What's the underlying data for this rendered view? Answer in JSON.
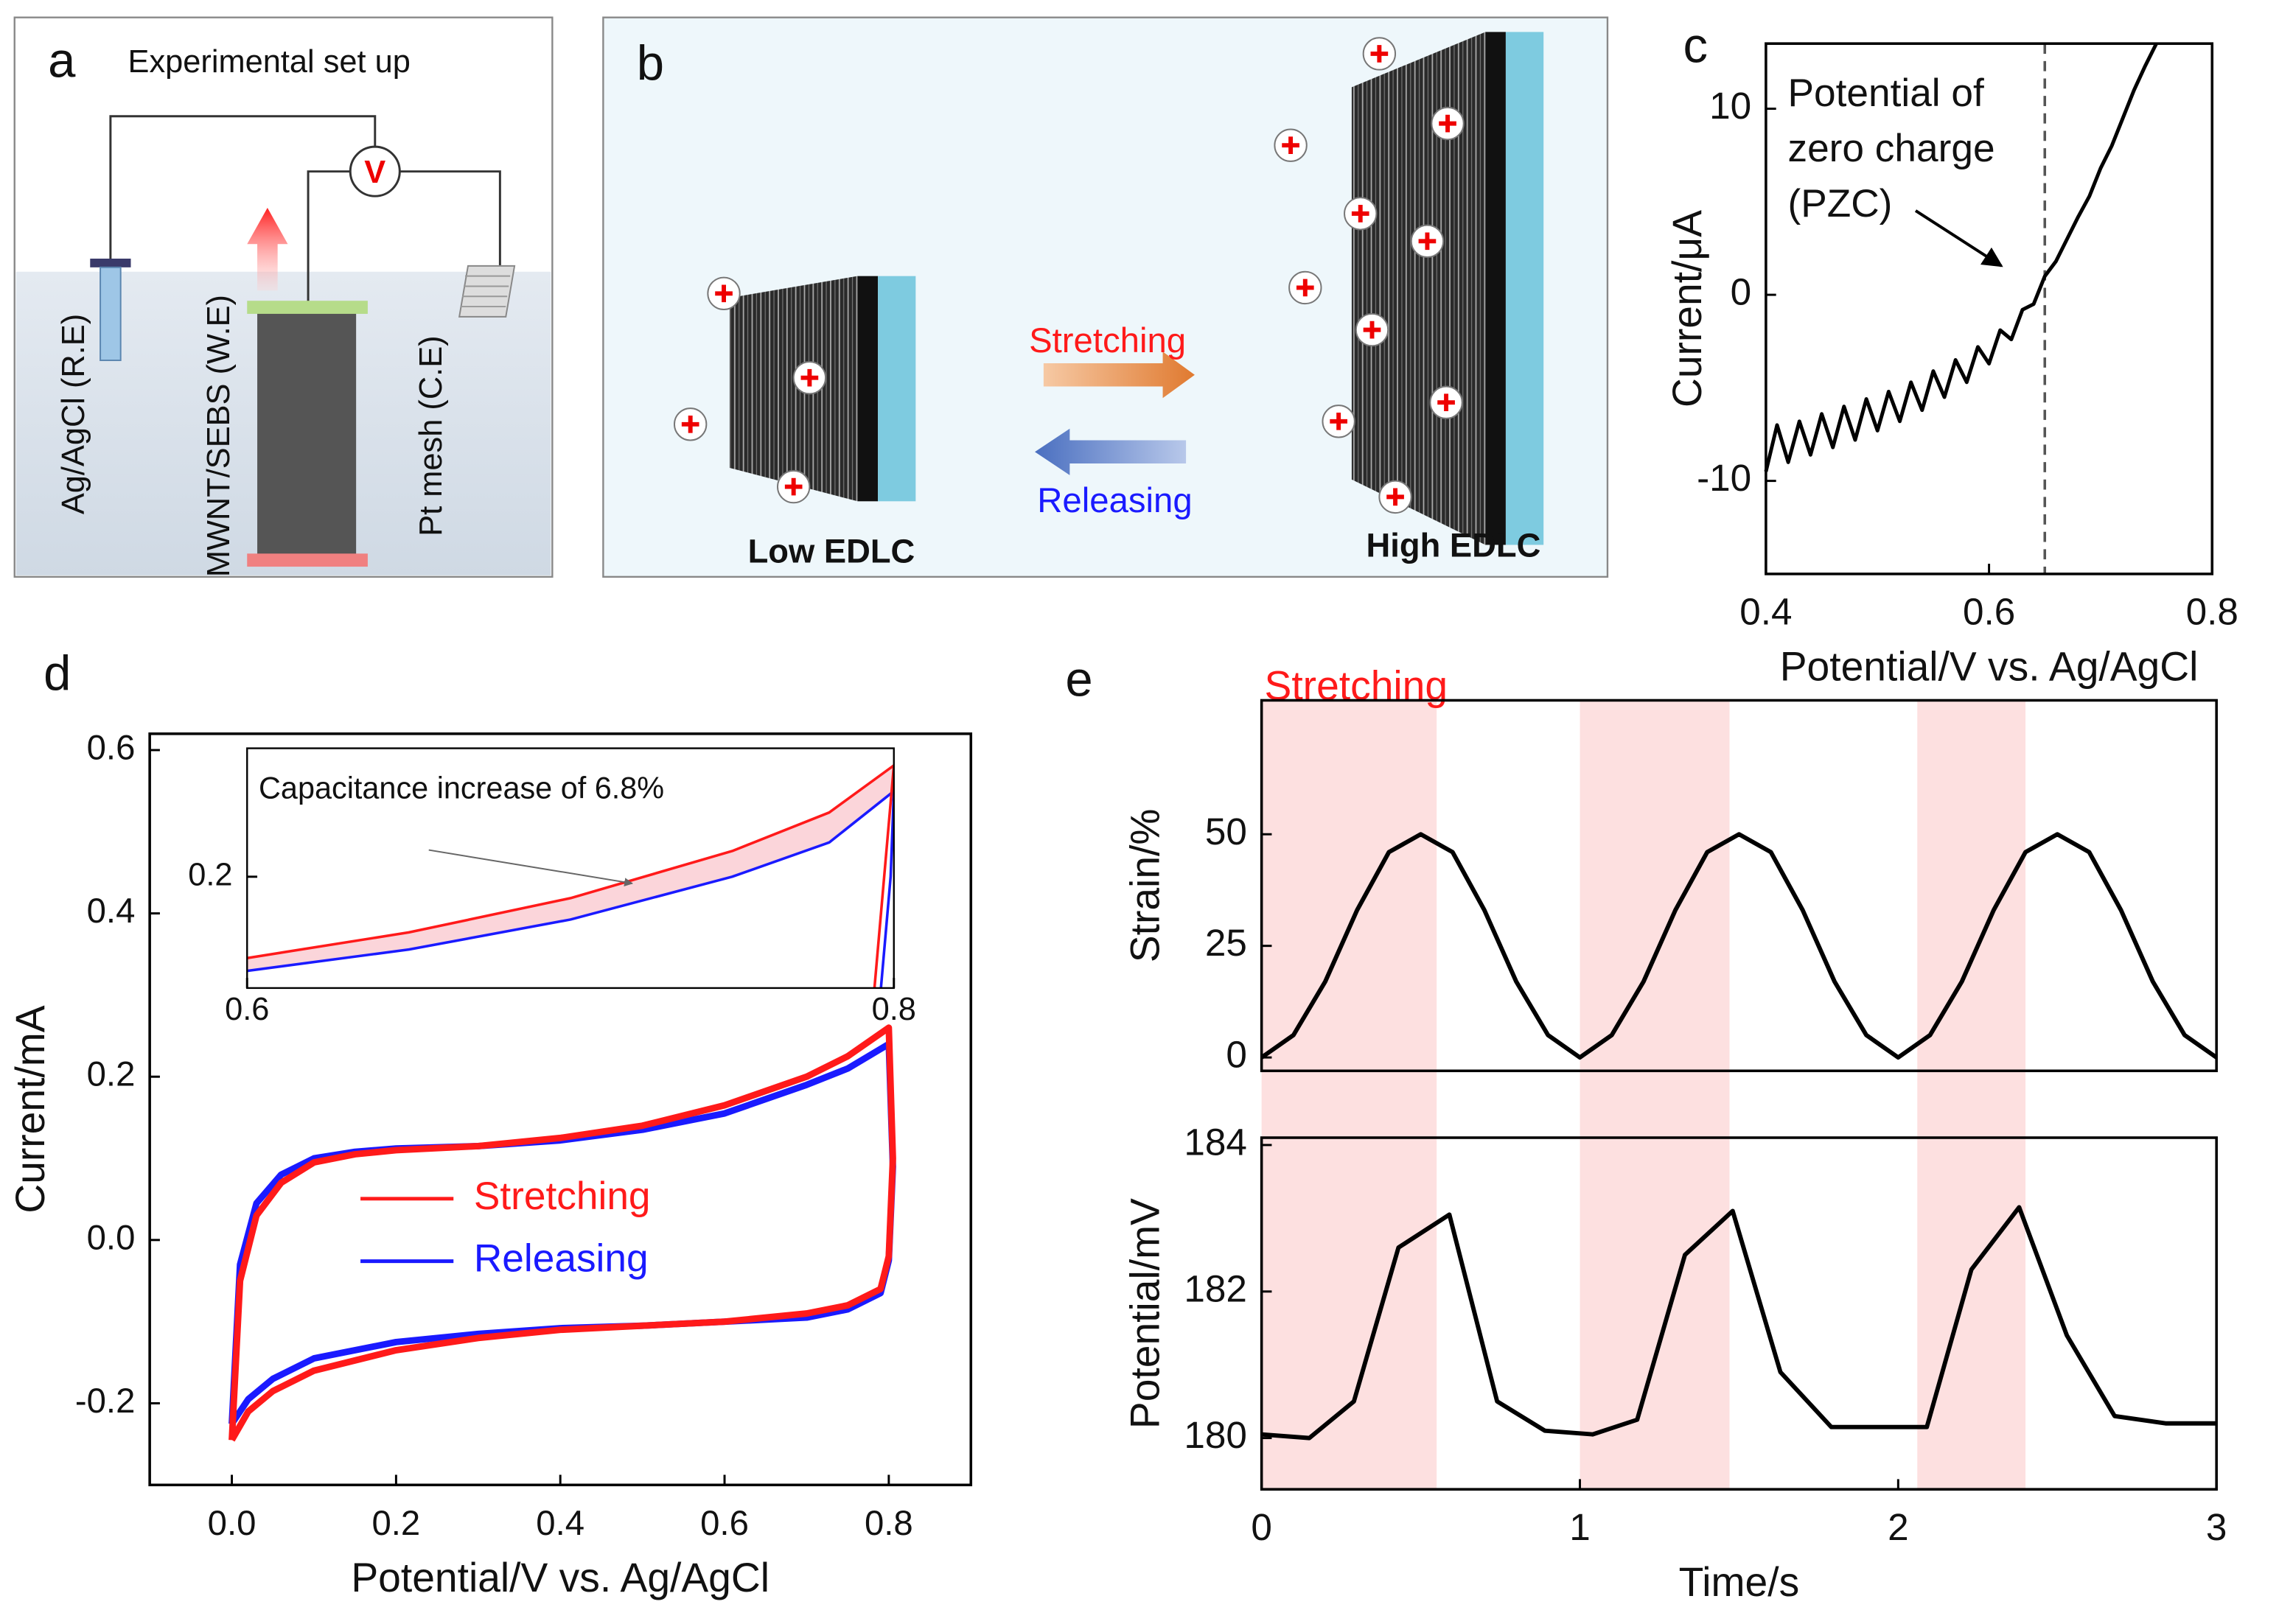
{
  "panels": {
    "a": {
      "label": "a",
      "title": "Experimental set up",
      "meter": "V",
      "reference": "Ag/AgCl (R.E)",
      "working": "MWNT/SEBS (W.E)",
      "counter": "Pt mesh (C.E)"
    },
    "b": {
      "label": "b",
      "forward": "Stretching",
      "backward": "Releasing",
      "low": "Low EDLC",
      "high": "High EDLC"
    }
  },
  "chart_data": [
    {
      "type": "line",
      "panel": "c",
      "xlabel": "Potential/V vs. Ag/AgCl",
      "ylabel": "Current/μA",
      "annotation": [
        "Potential of",
        "zero charge",
        "(PZC)"
      ],
      "vline": 0.65,
      "xlim": [
        0.4,
        0.8
      ],
      "ylim": [
        -15,
        13.5
      ],
      "xticks": [
        0.4,
        0.6,
        0.8
      ],
      "yticks": [
        -10,
        0,
        10
      ],
      "x": [
        0.4,
        0.41,
        0.42,
        0.43,
        0.44,
        0.45,
        0.46,
        0.47,
        0.48,
        0.49,
        0.5,
        0.51,
        0.52,
        0.53,
        0.54,
        0.55,
        0.56,
        0.57,
        0.58,
        0.59,
        0.6,
        0.61,
        0.62,
        0.63,
        0.64,
        0.65,
        0.66,
        0.67,
        0.68,
        0.69,
        0.7,
        0.71,
        0.72,
        0.73,
        0.74,
        0.75
      ],
      "series": [
        {
          "color": "#000000",
          "values": [
            -9.5,
            -7.0,
            -9.0,
            -6.8,
            -8.6,
            -6.4,
            -8.2,
            -6.0,
            -7.8,
            -5.6,
            -7.3,
            -5.2,
            -6.8,
            -4.7,
            -6.2,
            -4.1,
            -5.5,
            -3.5,
            -4.7,
            -2.8,
            -3.7,
            -1.9,
            -2.4,
            -0.8,
            -0.5,
            1.0,
            1.8,
            3.0,
            4.2,
            5.3,
            6.8,
            8.0,
            9.5,
            11.0,
            12.3,
            13.5
          ]
        }
      ]
    },
    {
      "type": "line",
      "panel": "d",
      "xlabel": "Potential/V vs. Ag/AgCl",
      "ylabel": "Current/mA",
      "legend": "center",
      "xlim": [
        -0.1,
        0.9
      ],
      "ylim": [
        -0.3,
        0.62
      ],
      "xticks": [
        {
          "value": 0,
          "label": "0.0"
        },
        0.2,
        0.4,
        0.6,
        0.8
      ],
      "yticks": [
        -0.2,
        {
          "value": 0,
          "label": "0.0"
        },
        0.2,
        0.4,
        0.6
      ],
      "series": [
        {
          "name": "Stretching",
          "color": "#ff1a1a",
          "x": [
            0.0,
            0.01,
            0.03,
            0.06,
            0.1,
            0.15,
            0.2,
            0.3,
            0.4,
            0.5,
            0.6,
            0.7,
            0.75,
            0.8,
            0.805,
            0.8,
            0.79,
            0.75,
            0.7,
            0.6,
            0.5,
            0.4,
            0.3,
            0.2,
            0.1,
            0.05,
            0.02,
            0.0
          ],
          "values": [
            -0.245,
            -0.05,
            0.03,
            0.07,
            0.095,
            0.105,
            0.11,
            0.115,
            0.125,
            0.14,
            0.165,
            0.2,
            0.225,
            0.26,
            0.1,
            -0.02,
            -0.06,
            -0.08,
            -0.09,
            -0.1,
            -0.105,
            -0.11,
            -0.12,
            -0.135,
            -0.16,
            -0.185,
            -0.21,
            -0.245
          ]
        },
        {
          "name": "Releasing",
          "color": "#1a1aff",
          "x": [
            0.0,
            0.01,
            0.03,
            0.06,
            0.1,
            0.15,
            0.2,
            0.3,
            0.4,
            0.5,
            0.6,
            0.7,
            0.75,
            0.8,
            0.805,
            0.8,
            0.79,
            0.75,
            0.7,
            0.6,
            0.5,
            0.4,
            0.3,
            0.2,
            0.1,
            0.05,
            0.02,
            0.0
          ],
          "values": [
            -0.225,
            -0.03,
            0.045,
            0.08,
            0.1,
            0.108,
            0.112,
            0.115,
            0.122,
            0.135,
            0.155,
            0.19,
            0.21,
            0.24,
            0.09,
            -0.025,
            -0.065,
            -0.085,
            -0.095,
            -0.1,
            -0.105,
            -0.108,
            -0.115,
            -0.125,
            -0.145,
            -0.17,
            -0.195,
            -0.225
          ]
        }
      ]
    },
    {
      "type": "line",
      "panel": "e",
      "ylabel": "Strain/%",
      "band_label": "Stretching",
      "bands": [
        [
          0,
          0.55
        ],
        [
          1,
          1.47
        ],
        [
          2.06,
          2.4
        ]
      ],
      "xlim": [
        0,
        3
      ],
      "ylim": [
        -3,
        80
      ],
      "yticks": [
        0,
        25,
        50
      ],
      "x": [
        0,
        0.1,
        0.2,
        0.3,
        0.4,
        0.5,
        0.6,
        0.7,
        0.8,
        0.9,
        1.0,
        1.1,
        1.2,
        1.3,
        1.4,
        1.5,
        1.6,
        1.7,
        1.8,
        1.9,
        2.0,
        2.1,
        2.2,
        2.3,
        2.4,
        2.5,
        2.6,
        2.7,
        2.8,
        2.9,
        3.0
      ],
      "series": [
        {
          "color": "#000000",
          "values": [
            0,
            5,
            17,
            33,
            46,
            50,
            46,
            33,
            17,
            5,
            0,
            5,
            17,
            33,
            46,
            50,
            46,
            33,
            17,
            5,
            0,
            5,
            17,
            33,
            46,
            50,
            46,
            33,
            17,
            5,
            0
          ]
        }
      ]
    },
    {
      "type": "line",
      "xlabel": "Time/s",
      "ylabel": "Potential/mV",
      "xlim": [
        0,
        3
      ],
      "ylim": [
        179.3,
        184.1
      ],
      "xticks": [
        0,
        1,
        2,
        3
      ],
      "yticks": [
        180,
        182,
        184
      ],
      "x": [
        0,
        0.15,
        0.29,
        0.43,
        0.59,
        0.74,
        0.89,
        1.04,
        1.18,
        1.33,
        1.48,
        1.63,
        1.79,
        2.09,
        2.23,
        2.38,
        2.53,
        2.68,
        2.84,
        3
      ],
      "series": [
        {
          "color": "#000000",
          "values": [
            180.05,
            180.0,
            180.5,
            182.6,
            183.05,
            180.5,
            180.1,
            180.05,
            180.25,
            182.5,
            183.1,
            180.9,
            180.15,
            180.15,
            182.3,
            183.15,
            181.4,
            180.3,
            180.2,
            180.2
          ]
        }
      ]
    },
    {
      "type": "line",
      "annotation": [
        "Capacitance increase of 6.8%"
      ],
      "fill_between": true,
      "xlim": [
        0.6,
        0.8
      ],
      "ylim": [
        0.07,
        0.35
      ],
      "xticks": [
        0.6,
        0.8
      ],
      "yticks": [
        0.2
      ],
      "series": [
        {
          "color": "#ff1a1a",
          "x": [
            0.6,
            0.65,
            0.7,
            0.75,
            0.78,
            0.8,
            0.797,
            0.794
          ],
          "values": [
            0.105,
            0.135,
            0.175,
            0.23,
            0.275,
            0.33,
            0.2,
            0.07
          ]
        },
        {
          "color": "#1a1aff",
          "x": [
            0.6,
            0.65,
            0.7,
            0.75,
            0.78,
            0.8,
            0.799,
            0.796
          ],
          "values": [
            0.09,
            0.115,
            0.15,
            0.2,
            0.24,
            0.3,
            0.2,
            0.07
          ]
        }
      ]
    }
  ]
}
